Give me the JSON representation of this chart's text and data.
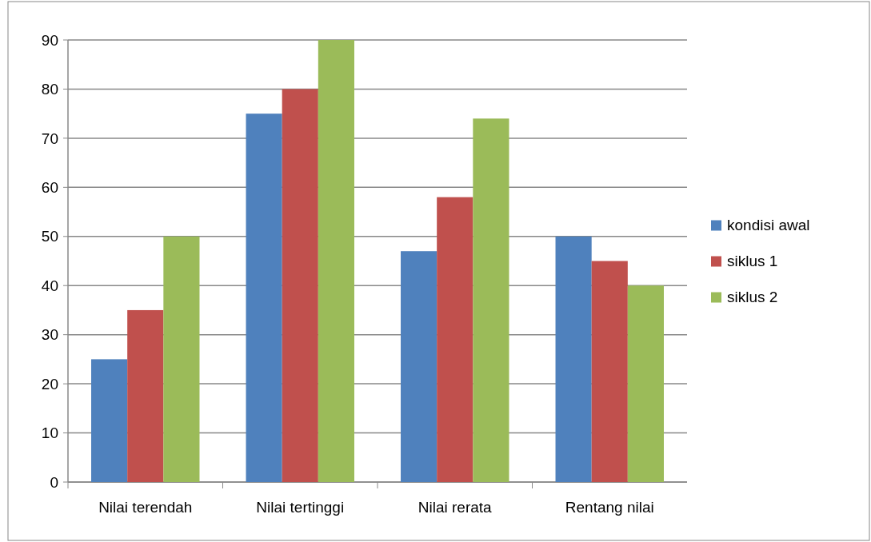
{
  "chart_data": {
    "type": "bar",
    "categories": [
      "Nilai terendah",
      "Nilai tertinggi",
      "Nilai rerata",
      "Rentang nilai"
    ],
    "series": [
      {
        "name": "kondisi awal",
        "color": "#4f81bd",
        "values": [
          25,
          75,
          47,
          50
        ]
      },
      {
        "name": "siklus 1",
        "color": "#c0504d",
        "values": [
          35,
          80,
          58,
          45
        ]
      },
      {
        "name": "siklus 2",
        "color": "#9bbb59",
        "values": [
          50,
          90,
          74,
          40
        ]
      }
    ],
    "ylim": [
      0,
      90
    ],
    "yticks": [
      0,
      10,
      20,
      30,
      40,
      50,
      60,
      70,
      80,
      90
    ],
    "grid": "y",
    "legend": "right"
  }
}
